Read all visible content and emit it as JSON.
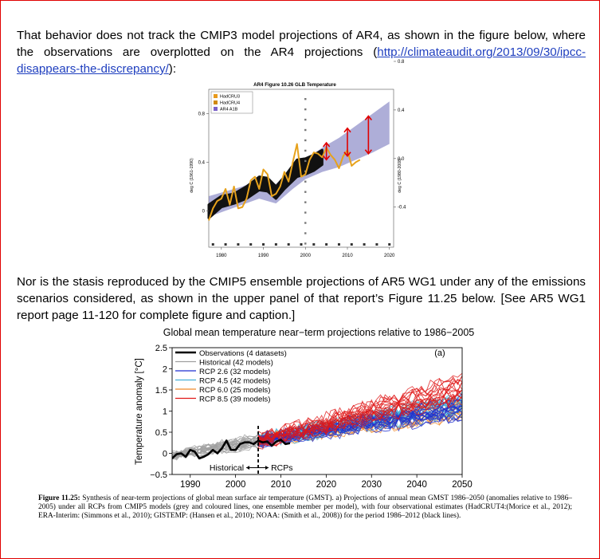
{
  "paragraph1": {
    "text": "That behavior does not track the CMIP3 model projections of AR4, as shown in the figure below, where the observations are overplotted on the AR4 projections (",
    "link": "http://climateaudit.org/2013/09/30/ipcc-disappears-the-discrepancy/",
    "link_text": "http://climateaudit.org/2013/09/30/ipcc-disappears-the-discrepancy/",
    "tail": "):"
  },
  "paragraph2": {
    "text": "Nor is the stasis reproduced by the CMIP5 ensemble projections of AR5 WG1 under any of the emissions scenarios considered, as shown in the upper panel of that report’s Figure 11.25 below. [See AR5 WG1 report page 11-120 for complete figure and caption.]"
  },
  "caption": {
    "label": "Figure 11.25:",
    "text": " Synthesis of near-term projections of global mean surface air temperature (GMST). a) Projections of annual mean GMST 1986–2050 (anomalies relative to 1986–2005) under all RCPs from CMIP5 models (grey and coloured lines, one ensemble member per model), with four observational estimates (HadCRUT4:(Morice et al., 2012); ERA-Interim: (Simmons et al., 2010); GISTEMP: (Hansen et al., 2010); NOAA: (Smith et al., 2008)) for the period 1986–2012 (black lines)."
  },
  "chart_data": [
    {
      "type": "line",
      "title": "AR4 Figure 10.26 GLB Temperature",
      "xlabel": "",
      "ylabel_left": "deg C (1961-1990)",
      "ylabel_right": "deg C (1980-2008)",
      "xlim": [
        1977,
        2021
      ],
      "ylim": [
        -0.3,
        1.0
      ],
      "xticks": [
        "1980",
        "1990",
        "2000",
        "2010",
        "2020"
      ],
      "yticks_left": [
        "0",
        "0.4",
        "0.8"
      ],
      "yticks_right": [
        "-0.4",
        "0.0",
        "0.4",
        "0.8"
      ],
      "legend": [
        "HadCRU3",
        "HadCRU4",
        "AR4 A1B"
      ],
      "legend_colors": [
        "#e89a1c",
        "#d08a10",
        "#7b61c9"
      ],
      "band_color": "#6b6bb8",
      "obs_color": "#e7a21c",
      "arrow_color": "#e00000",
      "model_band": {
        "x": [
          1977,
          1981,
          1985,
          1989,
          1993,
          1997,
          2000,
          2004,
          2008,
          2012,
          2016,
          2020
        ],
        "lower": [
          -0.05,
          0.0,
          0.05,
          0.1,
          0.06,
          0.18,
          0.26,
          0.32,
          0.36,
          0.42,
          0.48,
          0.55
        ],
        "upper": [
          0.12,
          0.16,
          0.2,
          0.26,
          0.22,
          0.36,
          0.42,
          0.52,
          0.6,
          0.7,
          0.8,
          0.9
        ]
      },
      "black_band": {
        "x": [
          1977,
          1980,
          1983,
          1986,
          1989,
          1991,
          1993,
          1995,
          1998,
          2000,
          2002,
          2004
        ],
        "lower": [
          -0.06,
          0.03,
          0.06,
          0.1,
          0.17,
          0.16,
          0.1,
          0.18,
          0.28,
          0.3,
          0.33,
          0.38
        ],
        "upper": [
          0.05,
          0.12,
          0.14,
          0.2,
          0.28,
          0.27,
          0.2,
          0.28,
          0.42,
          0.43,
          0.46,
          0.5
        ]
      },
      "observations": {
        "x": [
          1977,
          1978,
          1979,
          1980,
          1981,
          1982,
          1983,
          1984,
          1985,
          1986,
          1987,
          1988,
          1989,
          1990,
          1991,
          1992,
          1993,
          1994,
          1995,
          1996,
          1997,
          1998,
          1999,
          2000,
          2001,
          2002,
          2003,
          2004,
          2005,
          2006,
          2007,
          2008,
          2009,
          2010,
          2011,
          2012,
          2013
        ],
        "y": [
          -0.08,
          0.02,
          0.08,
          0.1,
          0.18,
          0.05,
          0.2,
          0.02,
          0.03,
          0.1,
          0.25,
          0.28,
          0.18,
          0.34,
          0.3,
          0.12,
          0.14,
          0.2,
          0.32,
          0.24,
          0.4,
          0.55,
          0.28,
          0.3,
          0.42,
          0.48,
          0.47,
          0.44,
          0.52,
          0.46,
          0.42,
          0.35,
          0.45,
          0.5,
          0.37,
          0.4,
          0.42
        ]
      },
      "arrows": [
        {
          "x": 2005,
          "from": 0.42,
          "to": 0.56
        },
        {
          "x": 2010,
          "from": 0.45,
          "to": 0.68
        },
        {
          "x": 2015,
          "from": 0.47,
          "to": 0.78
        }
      ]
    },
    {
      "type": "line",
      "title": "Global mean temperature near−term projections relative to 1986−2005",
      "panel_label": "(a)",
      "xlabel": "",
      "ylabel": "Temperature anomaly [°C]",
      "xlim": [
        1986,
        2050
      ],
      "ylim": [
        -0.5,
        2.5
      ],
      "xticks": [
        "1990",
        "2000",
        "2010",
        "2020",
        "2030",
        "2040",
        "2050"
      ],
      "yticks": [
        "−0.5",
        "0",
        "0.5",
        "1",
        "1.5",
        "2",
        "2.5"
      ],
      "legend": [
        {
          "label": "Observations (4 datasets)",
          "color": "#000000"
        },
        {
          "label": "Historical (42 models)",
          "color": "#a0a0a0"
        },
        {
          "label": "RCP 2.6 (32 models)",
          "color": "#1f2fd0"
        },
        {
          "label": "RCP 4.5 (42 models)",
          "color": "#46b0d8"
        },
        {
          "label": "RCP 6.0 (25 models)",
          "color": "#f08a2a"
        },
        {
          "label": "RCP 8.5 (39 models)",
          "color": "#e01818"
        }
      ],
      "annotation_left": "Historical",
      "annotation_right": "RCPs",
      "divider_year": 2005,
      "observations": {
        "x": [
          1986,
          1987,
          1988,
          1989,
          1990,
          1991,
          1992,
          1993,
          1994,
          1995,
          1996,
          1997,
          1998,
          1999,
          2000,
          2001,
          2002,
          2003,
          2004,
          2005,
          2006,
          2007,
          2008,
          2009,
          2010,
          2011,
          2012
        ],
        "y": [
          -0.12,
          -0.02,
          0.0,
          -0.08,
          0.08,
          0.04,
          -0.12,
          -0.08,
          -0.02,
          0.08,
          0.0,
          0.12,
          0.3,
          0.08,
          0.08,
          0.22,
          0.26,
          0.26,
          0.22,
          0.3,
          0.26,
          0.28,
          0.18,
          0.28,
          0.32,
          0.22,
          0.24
        ]
      },
      "scenario_envelopes": [
        {
          "name": "Historical",
          "x": [
            1986,
            2005
          ],
          "mid": [
            -0.05,
            0.3
          ],
          "spread": 0.35
        },
        {
          "name": "RCP 2.6",
          "x": [
            2005,
            2050
          ],
          "mid": [
            0.3,
            1.05
          ],
          "spread": 0.55
        },
        {
          "name": "RCP 4.5",
          "x": [
            2005,
            2050
          ],
          "mid": [
            0.3,
            1.15
          ],
          "spread": 0.55
        },
        {
          "name": "RCP 6.0",
          "x": [
            2005,
            2050
          ],
          "mid": [
            0.3,
            1.05
          ],
          "spread": 0.5
        },
        {
          "name": "RCP 8.5",
          "x": [
            2005,
            2050
          ],
          "mid": [
            0.3,
            1.55
          ],
          "spread": 0.65
        }
      ]
    }
  ]
}
